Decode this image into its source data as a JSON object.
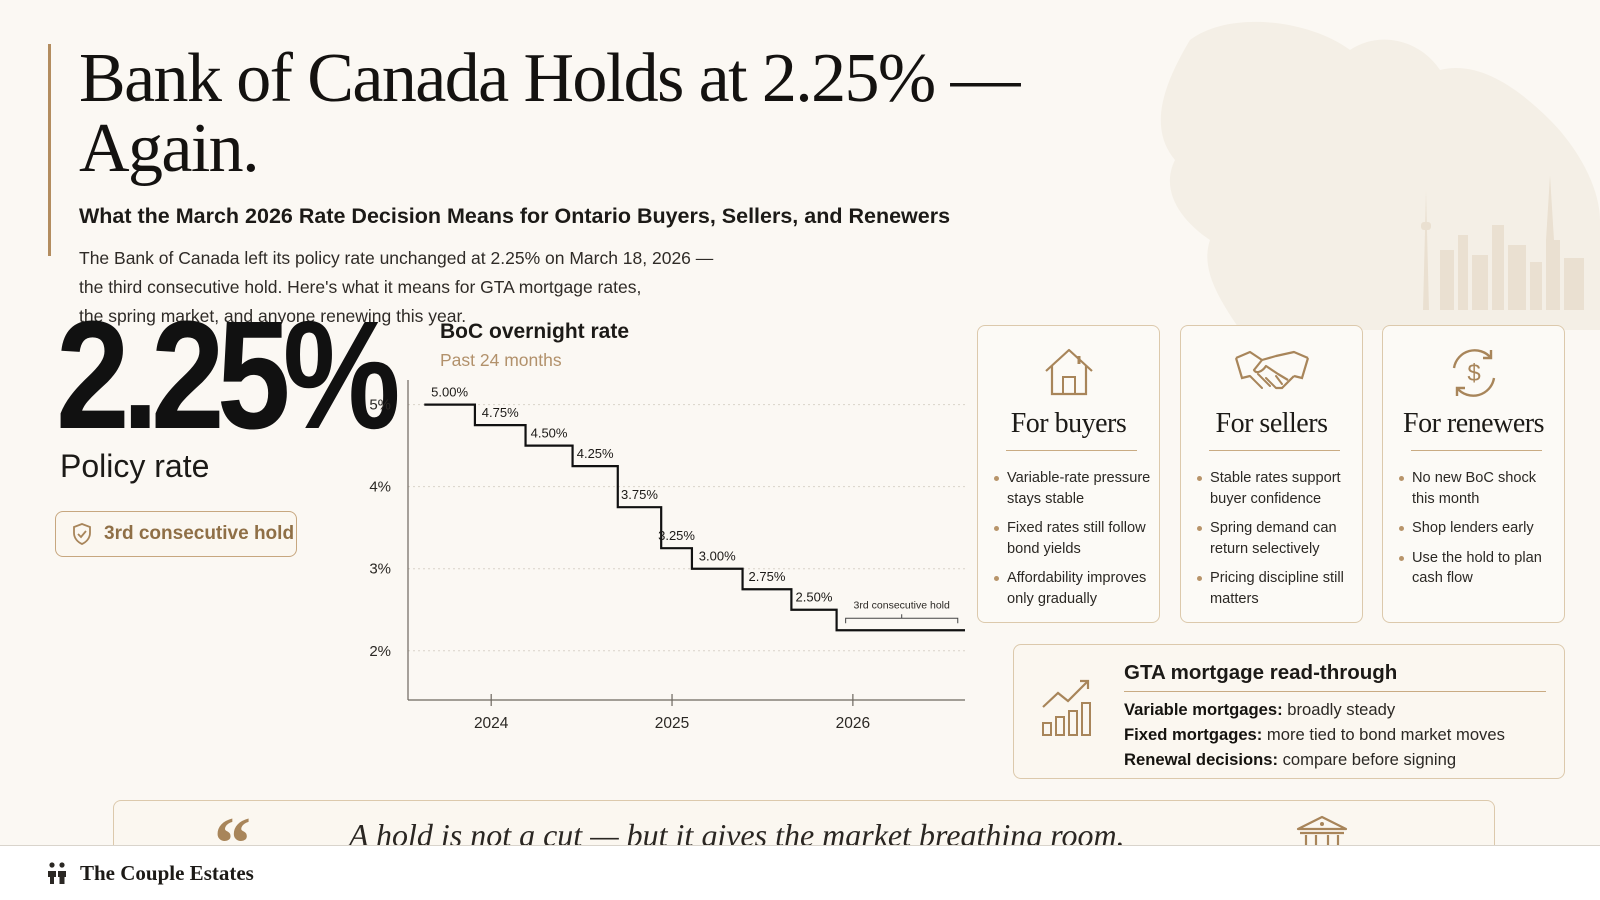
{
  "header": {
    "title": "Bank of Canada Holds at 2.25% — Again.",
    "subtitle": "What the March 2026 Rate Decision Means for Ontario Buyers, Sellers, and Renewers",
    "intro_lines": [
      "The Bank of Canada left its policy rate unchanged at 2.25% on March 18, 2026 —",
      "the third consecutive hold. Here's what it means for GTA mortgage rates,",
      "the spring market, and anyone renewing this year."
    ]
  },
  "stat": {
    "value": "2.25%",
    "label": "Policy rate",
    "badge": "3rd consecutive hold",
    "badge_icon": "shield-check-icon"
  },
  "chart_data": {
    "type": "line",
    "step": true,
    "title": "BoC overnight rate",
    "subtitle": "Past 24 months",
    "y_ticks": [
      "5%",
      "4%",
      "3%",
      "2%"
    ],
    "y_tick_values": [
      5,
      4,
      3,
      2
    ],
    "ylim": [
      1.4,
      5.3
    ],
    "x_ticks": [
      "2024",
      "2025",
      "2026"
    ],
    "x_tick_values": [
      2024.0,
      2025.0,
      2026.0
    ],
    "xlim": [
      2023.54,
      2026.62
    ],
    "grid": true,
    "series": [
      {
        "points": [
          {
            "start": 2023.63,
            "end": 2023.91,
            "value": 5.0,
            "label": "5.00%"
          },
          {
            "start": 2023.91,
            "end": 2024.19,
            "value": 4.75,
            "label": "4.75%"
          },
          {
            "start": 2024.19,
            "end": 2024.45,
            "value": 4.5,
            "label": "4.50%"
          },
          {
            "start": 2024.45,
            "end": 2024.7,
            "value": 4.25,
            "label": "4.25%"
          },
          {
            "start": 2024.7,
            "end": 2024.94,
            "value": 3.75,
            "label": "3.75%"
          },
          {
            "start": 2024.94,
            "end": 2025.11,
            "value": 3.25,
            "label": "3.25%"
          },
          {
            "start": 2025.11,
            "end": 2025.39,
            "value": 3.0,
            "label": "3.00%"
          },
          {
            "start": 2025.39,
            "end": 2025.66,
            "value": 2.75,
            "label": "2.75%"
          },
          {
            "start": 2025.66,
            "end": 2025.91,
            "value": 2.5,
            "label": "2.50%"
          },
          {
            "start": 2025.91,
            "end": 2026.62,
            "value": 2.25,
            "label": ""
          }
        ]
      }
    ],
    "annotation": {
      "text": "3rd consecutive hold",
      "start": 2025.96,
      "end": 2026.58
    }
  },
  "cards": [
    {
      "title": "For buyers",
      "icon": "house-icon",
      "items": [
        "Variable-rate pressure stays stable",
        "Fixed rates still follow bond yields",
        "Affordability improves only gradually"
      ]
    },
    {
      "title": "For sellers",
      "icon": "handshake-icon",
      "items": [
        "Stable rates support buyer confidence",
        "Spring demand can return selectively",
        "Pricing discipline still matters"
      ]
    },
    {
      "title": "For renewers",
      "icon": "dollar-cycle-icon",
      "items": [
        "No new BoC shock this month",
        "Shop lenders early",
        "Use the hold to plan cash flow"
      ]
    }
  ],
  "gta": {
    "title": "GTA mortgage read-through",
    "icon": "chart-growth-icon",
    "rows": [
      {
        "label": "Variable mortgages:",
        "value": " broadly steady"
      },
      {
        "label": "Fixed mortgages:",
        "value": " more tied to bond market moves"
      },
      {
        "label": "Renewal decisions:",
        "value": " compare before signing"
      }
    ]
  },
  "quote": {
    "mark": "“",
    "text": "A hold is not a cut — but it gives the market breathing room.",
    "icon": "bank-building-icon"
  },
  "footer": {
    "brand": "The Couple Estates",
    "icon": "couple-icon"
  },
  "colors": {
    "accent": "#a8855a",
    "border": "#dcc9ac",
    "background": "#fbf8f3",
    "text": "#1c1a17"
  }
}
